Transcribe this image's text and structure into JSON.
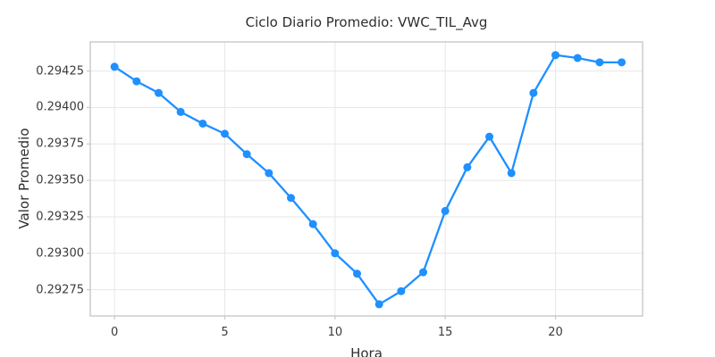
{
  "chart_data": {
    "type": "line",
    "title": "Ciclo Diario Promedio: VWC_TIL_Avg",
    "xlabel": "Hora",
    "ylabel": "Valor Promedio",
    "x": [
      0,
      1,
      2,
      3,
      4,
      5,
      6,
      7,
      8,
      9,
      10,
      11,
      12,
      13,
      14,
      15,
      16,
      17,
      18,
      19,
      20,
      21,
      22,
      23
    ],
    "values": [
      0.29428,
      0.29418,
      0.2941,
      0.29397,
      0.29389,
      0.29382,
      0.29368,
      0.29355,
      0.29338,
      0.2932,
      0.293,
      0.29286,
      0.29265,
      0.29274,
      0.29287,
      0.29329,
      0.29359,
      0.2938,
      0.29355,
      0.2941,
      0.29436,
      0.29434,
      0.29431,
      0.29431
    ],
    "xticks": [
      0,
      5,
      10,
      15,
      20
    ],
    "xtick_labels": [
      "0",
      "5",
      "10",
      "15",
      "20"
    ],
    "yticks": [
      0.29275,
      0.293,
      0.29325,
      0.2935,
      0.29375,
      0.294,
      0.29425
    ],
    "ytick_labels": [
      "0.29275",
      "0.29300",
      "0.29325",
      "0.29350",
      "0.29375",
      "0.29400",
      "0.29425"
    ],
    "xlim": [
      -1.1,
      23.95
    ],
    "ylim": [
      0.29257,
      0.29445
    ],
    "grid": true,
    "legend": null,
    "line_color": "#1E90FF",
    "marker_color": "#1E90FF",
    "grid_color": "#e7e7e7",
    "spine_color": "#c9c9c9",
    "text_color": "#3b3b3b",
    "background_color": "#ffffff",
    "line_width": 2.3,
    "marker_radius": 4.5
  },
  "layout_note_values_only": "all strings above are rendered pixels from the screenshot"
}
